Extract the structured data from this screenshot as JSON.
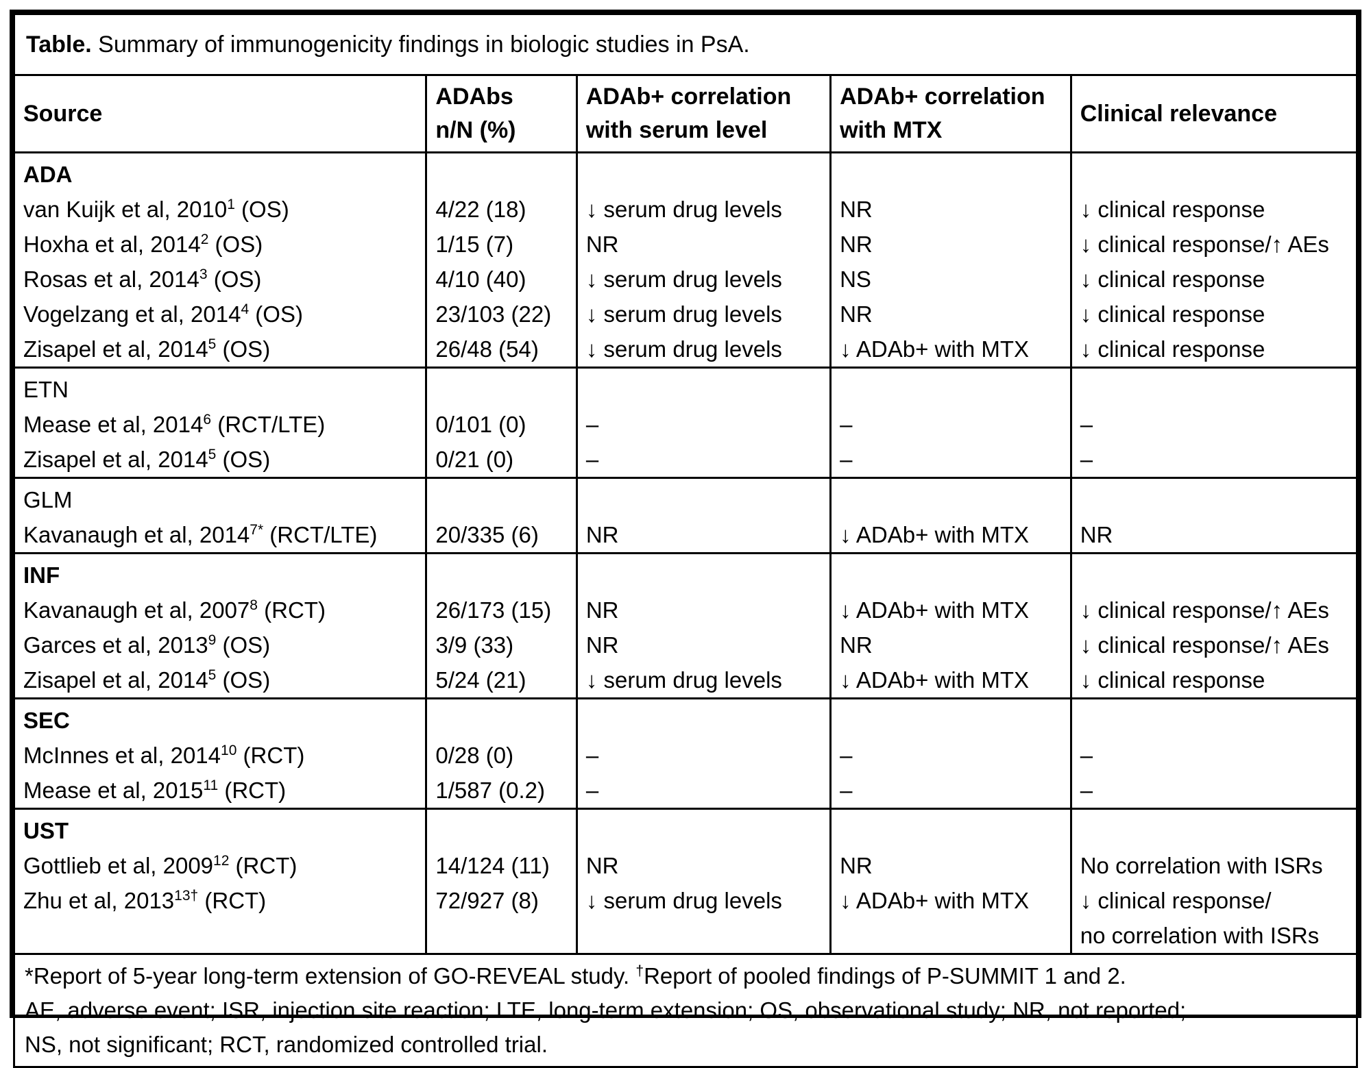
{
  "title": {
    "label": "Table.",
    "caption": " Summary of immunogenicity findings in biologic studies in PsA."
  },
  "columns": [
    {
      "key": "source",
      "lines": [
        "Source"
      ]
    },
    {
      "key": "adabs",
      "lines": [
        "ADAbs",
        "n/N (%)"
      ]
    },
    {
      "key": "serum",
      "lines": [
        "ADAb+ correlation",
        "with serum level"
      ]
    },
    {
      "key": "mtx",
      "lines": [
        "ADAb+ correlation",
        "with MTX"
      ]
    },
    {
      "key": "clinical",
      "lines": [
        "Clinical relevance"
      ]
    }
  ],
  "sections": [
    {
      "drug": "ADA",
      "bold": true,
      "studies": [
        {
          "source": [
            {
              "t": "van Kuijk et al, 2010"
            },
            {
              "t": "1",
              "sup": true
            },
            {
              "t": " (OS)"
            }
          ],
          "adabs": "4/22 (18)",
          "serum": "↓ serum drug levels",
          "mtx": "NR",
          "clinical": [
            "↓ clinical response"
          ]
        },
        {
          "source": [
            {
              "t": "Hoxha et al, 2014"
            },
            {
              "t": "2",
              "sup": true
            },
            {
              "t": " (OS)"
            }
          ],
          "adabs": "1/15 (7)",
          "serum": "NR",
          "mtx": "NR",
          "clinical": [
            "↓ clinical response/↑ AEs"
          ]
        },
        {
          "source": [
            {
              "t": "Rosas et al, 2014"
            },
            {
              "t": "3",
              "sup": true
            },
            {
              "t": " (OS)"
            }
          ],
          "adabs": "4/10 (40)",
          "serum": "↓ serum drug levels",
          "mtx": "NS",
          "clinical": [
            "↓ clinical response"
          ]
        },
        {
          "source": [
            {
              "t": "Vogelzang et al, 2014"
            },
            {
              "t": "4",
              "sup": true
            },
            {
              "t": " (OS)"
            }
          ],
          "adabs": "23/103 (22)",
          "serum": "↓ serum drug levels",
          "mtx": "NR",
          "clinical": [
            "↓ clinical response"
          ]
        },
        {
          "source": [
            {
              "t": "Zisapel et al, 2014"
            },
            {
              "t": "5",
              "sup": true
            },
            {
              "t": " (OS)"
            }
          ],
          "adabs": "26/48 (54)",
          "serum": "↓ serum drug levels",
          "mtx": "↓ ADAb+ with MTX",
          "clinical": [
            "↓ clinical response"
          ]
        }
      ]
    },
    {
      "drug": "ETN",
      "bold": false,
      "studies": [
        {
          "source": [
            {
              "t": "Mease et al, 2014"
            },
            {
              "t": "6",
              "sup": true
            },
            {
              "t": " (RCT/LTE)"
            }
          ],
          "adabs": "0/101 (0)",
          "serum": "–",
          "mtx": "–",
          "clinical": [
            "–"
          ]
        },
        {
          "source": [
            {
              "t": "Zisapel et al, 2014"
            },
            {
              "t": "5",
              "sup": true
            },
            {
              "t": " (OS)"
            }
          ],
          "adabs": "0/21 (0)",
          "serum": "–",
          "mtx": "–",
          "clinical": [
            "–"
          ]
        }
      ]
    },
    {
      "drug": "GLM",
      "bold": false,
      "studies": [
        {
          "source": [
            {
              "t": "Kavanaugh et al, 2014"
            },
            {
              "t": "7*",
              "sup": true
            },
            {
              "t": " (RCT/LTE)"
            }
          ],
          "adabs": "20/335 (6)",
          "serum": "NR",
          "mtx": "↓ ADAb+ with MTX",
          "clinical": [
            "NR"
          ]
        }
      ]
    },
    {
      "drug": "INF",
      "bold": true,
      "studies": [
        {
          "source": [
            {
              "t": "Kavanaugh et al, 2007"
            },
            {
              "t": "8",
              "sup": true
            },
            {
              "t": " (RCT)"
            }
          ],
          "adabs": "26/173 (15)",
          "serum": "NR",
          "mtx": "↓ ADAb+ with MTX",
          "clinical": [
            "↓ clinical response/↑ AEs"
          ]
        },
        {
          "source": [
            {
              "t": "Garces et al, 2013"
            },
            {
              "t": "9",
              "sup": true
            },
            {
              "t": " (OS)"
            }
          ],
          "adabs": "3/9 (33)",
          "serum": "NR",
          "mtx": "NR",
          "clinical": [
            "↓ clinical response/↑ AEs"
          ]
        },
        {
          "source": [
            {
              "t": "Zisapel et al, 2014"
            },
            {
              "t": "5",
              "sup": true
            },
            {
              "t": " (OS)"
            }
          ],
          "adabs": "5/24 (21)",
          "serum": "↓ serum drug levels",
          "mtx": "↓ ADAb+ with MTX",
          "clinical": [
            "↓ clinical response"
          ]
        }
      ]
    },
    {
      "drug": "SEC",
      "bold": true,
      "studies": [
        {
          "source": [
            {
              "t": "McInnes et al, 2014"
            },
            {
              "t": "10",
              "sup": true
            },
            {
              "t": " (RCT)"
            }
          ],
          "adabs": "0/28 (0)",
          "serum": "–",
          "mtx": "–",
          "clinical": [
            "–"
          ]
        },
        {
          "source": [
            {
              "t": "Mease et al, 2015"
            },
            {
              "t": "11",
              "sup": true
            },
            {
              "t": " (RCT)"
            }
          ],
          "adabs": "1/587 (0.2)",
          "serum": "–",
          "mtx": "–",
          "clinical": [
            "–"
          ]
        }
      ]
    },
    {
      "drug": "UST",
      "bold": true,
      "studies": [
        {
          "source": [
            {
              "t": "Gottlieb et al, 2009"
            },
            {
              "t": "12",
              "sup": true
            },
            {
              "t": " (RCT)"
            }
          ],
          "adabs": "14/124 (11)",
          "serum": "NR",
          "mtx": "NR",
          "clinical": [
            "No correlation with ISRs"
          ]
        },
        {
          "source": [
            {
              "t": "Zhu et al, 2013"
            },
            {
              "t": "13†",
              "sup": true
            },
            {
              "t": " (RCT)"
            }
          ],
          "adabs": "72/927 (8)",
          "serum": "↓ serum drug levels",
          "mtx": "↓ ADAb+ with MTX",
          "clinical": [
            "↓ clinical response/",
            "no correlation with ISRs"
          ]
        }
      ]
    }
  ],
  "footnotes": [
    [
      {
        "t": "*Report of 5-year long-term extension of GO-REVEAL study. "
      },
      {
        "t": "†",
        "sup": true
      },
      {
        "t": "Report of pooled findings of P-SUMMIT 1 and 2."
      }
    ],
    [
      {
        "t": "AE, adverse event; ISR, injection site reaction; LTE, long-term extension; OS, observational study; NR, not reported;"
      }
    ],
    [
      {
        "t": "NS, not significant; RCT, randomized controlled trial."
      }
    ]
  ]
}
